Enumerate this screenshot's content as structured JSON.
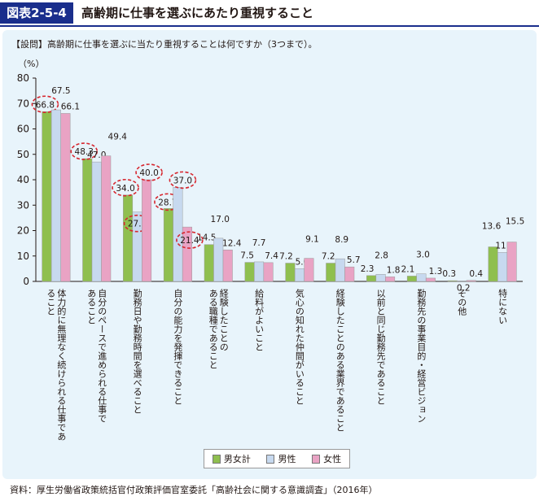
{
  "header": {
    "badge": "図表2-5-4",
    "title": "高齢期に仕事を選ぶにあたり重視すること"
  },
  "question": "【設問】高齢期に仕事を選ぶに当たり重視することは何ですか（3つまで）。",
  "unit_label": "（%）",
  "source": "資料：厚生労働省政策統括官付政策評価官室委託「高齢社会に関する意識調査」（2016年）",
  "colors": {
    "header_bg": "#1a2e8c",
    "panel_bg": "#e8f4fb",
    "total": "#8fbf4f",
    "male": "#c7d9ef",
    "female": "#e9a3c4",
    "highlight_circle": "#d7262e"
  },
  "chart_data": {
    "type": "bar",
    "title": "",
    "ylabel": "（%）",
    "ylim": [
      0,
      80
    ],
    "yticks": [
      0,
      10,
      20,
      30,
      40,
      50,
      60,
      70,
      80
    ],
    "grid": false,
    "legend_position": "bottom",
    "categories": [
      "体力的に無理なく続けられる仕事であること",
      "自分のペースで進められる仕事であること",
      "勤務日や勤務時間を選べること",
      "自分の能力を発揮できること",
      "経験したことのある職種であること",
      "給料がよいこと",
      "気心の知れた仲間がいること",
      "経験したことのある業界であること",
      "以前と同じ勤務先であること",
      "勤務先の事業目的・経営ビジョン",
      "その他",
      "特にない"
    ],
    "series": [
      {
        "name": "男女計",
        "values": [
          66.8,
          48.3,
          34.0,
          28.7,
          14.5,
          7.5,
          7.2,
          7.2,
          2.3,
          2.1,
          0.3,
          13.6
        ]
      },
      {
        "name": "男性",
        "values": [
          67.5,
          47.0,
          27.3,
          37.0,
          17.0,
          7.7,
          5.0,
          8.9,
          2.8,
          3.0,
          0.2,
          11.4
        ]
      },
      {
        "name": "女性",
        "values": [
          66.1,
          49.4,
          40.0,
          21.4,
          12.4,
          7.4,
          9.1,
          5.7,
          1.8,
          1.3,
          0.4,
          15.5
        ]
      }
    ],
    "value_labels": [
      [
        "66.8",
        "48.3",
        "34.0",
        "28.7",
        "14.5",
        "7.5",
        "7.2",
        "7.2",
        "2.3",
        "2.1",
        "0.3",
        "13.6"
      ],
      [
        "67.5",
        "47.0",
        "27.3",
        "37.0",
        "17.0",
        "7.7",
        "5.0",
        "8.9",
        "2.8",
        "3.0",
        "0.2",
        "11.4"
      ],
      [
        "66.1",
        "49.4",
        "40.0",
        "21.4",
        "12.4",
        "7.4",
        "9.1",
        "5.7",
        "1.8",
        "1.3",
        "0.4",
        "15.5"
      ]
    ],
    "highlighted": [
      {
        "series": 0,
        "category": 0
      },
      {
        "series": 0,
        "category": 1
      },
      {
        "series": 0,
        "category": 2
      },
      {
        "series": 1,
        "category": 2
      },
      {
        "series": 2,
        "category": 2
      },
      {
        "series": 1,
        "category": 3
      },
      {
        "series": 0,
        "category": 3
      },
      {
        "series": 2,
        "category": 3
      }
    ]
  }
}
